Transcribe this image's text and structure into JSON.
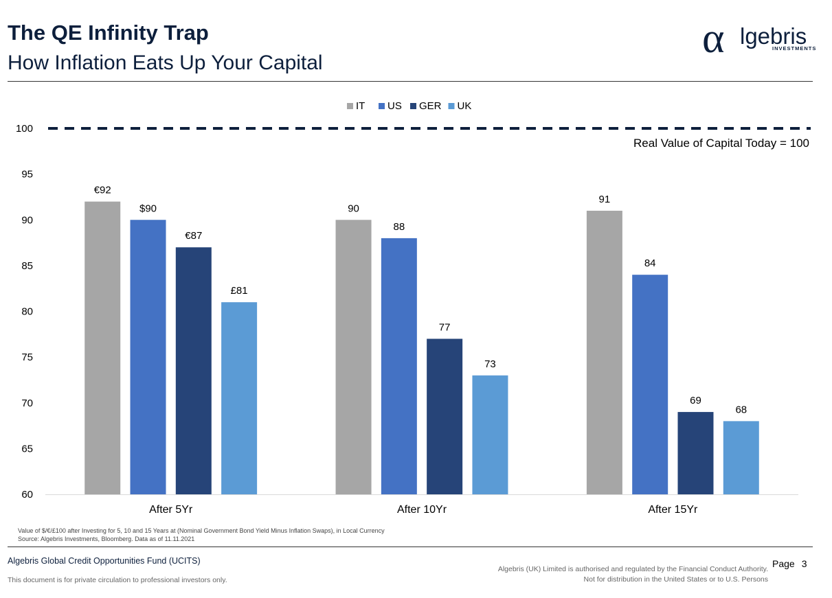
{
  "header": {
    "title": "The QE Infinity Trap",
    "subtitle": "How Inflation Eats Up Your Capital"
  },
  "logo": {
    "alpha": "α",
    "name": "lgebris",
    "tagline": "INVESTMENTS"
  },
  "chart_data": {
    "type": "bar",
    "categories": [
      "After 5Yr",
      "After 10Yr",
      "After 15Yr"
    ],
    "series": [
      {
        "name": "IT",
        "color": "#a6a6a6",
        "values": [
          92,
          90,
          91
        ],
        "labels": [
          "€92",
          "90",
          "91"
        ]
      },
      {
        "name": "US",
        "color": "#4472c4",
        "values": [
          90,
          88,
          84
        ],
        "labels": [
          "$90",
          "88",
          "84"
        ]
      },
      {
        "name": "GER",
        "color": "#264478",
        "values": [
          87,
          77,
          69
        ],
        "labels": [
          "€87",
          "77",
          "69"
        ]
      },
      {
        "name": "UK",
        "color": "#5b9bd5",
        "values": [
          81,
          73,
          68
        ],
        "labels": [
          "£81",
          "73",
          "68"
        ]
      }
    ],
    "ylim": [
      60,
      100
    ],
    "yticks": [
      60,
      65,
      70,
      75,
      80,
      85,
      90,
      95,
      100
    ],
    "reference_line": {
      "value": 100,
      "label": "Real Value of Capital Today = 100",
      "color": "#0d1f3c",
      "style": "dashed"
    },
    "legend_position": "top-center",
    "grid": false
  },
  "footer": {
    "note_line1": "Value of $/€/£100 after Investing for 5, 10 and 15 Years at (Nominal Government Bond Yield Minus Inflation Swaps), in Local Currency",
    "note_line2": "Source: Algebris Investments, Bloomberg. Data as of 11.11.2021",
    "fund_name": "Algebris Global Credit Opportunities Fund (UCITS)",
    "private_notice": "This document is for private circulation to professional investors only.",
    "regulatory_line1": "Algebris (UK) Limited is authorised and regulated by the Financial Conduct Authority.",
    "regulatory_line2": "Not for distribution in the United States or to U.S. Persons",
    "page_label": "Page",
    "page_number": "3"
  }
}
